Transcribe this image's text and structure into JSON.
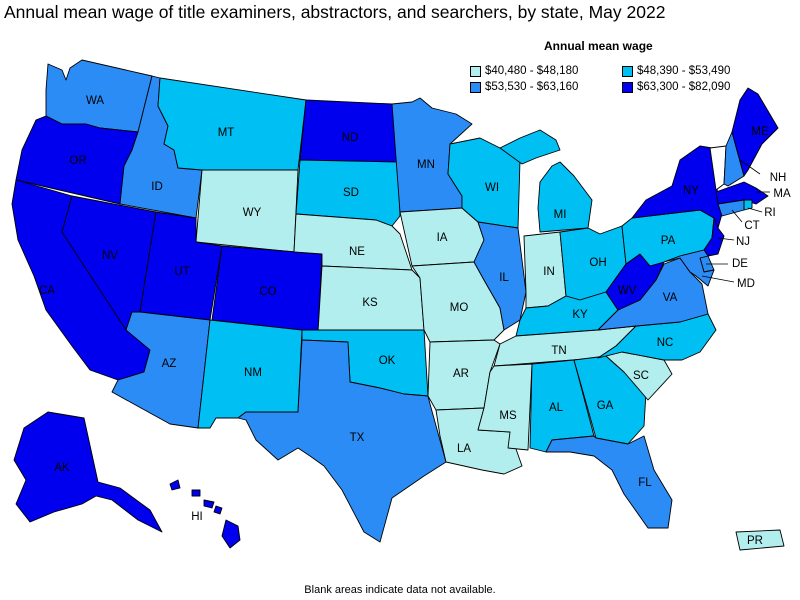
{
  "title": "Annual mean wage of title examiners, abstractors, and searchers, by state, May 2022",
  "legend": {
    "title": "Annual mean wage",
    "bins": [
      {
        "label": "$40,480 - $48,180",
        "color": "#b3eeee"
      },
      {
        "label": "$48,390 - $53,490",
        "color": "#00bff3"
      },
      {
        "label": "$53,530 - $63,160",
        "color": "#2b8cf6"
      },
      {
        "label": "$63,300 - $82,090",
        "color": "#0000ee"
      }
    ]
  },
  "footnote": "Blank areas indicate data not available.",
  "states": {
    "WA": {
      "label": "WA",
      "bin": 2
    },
    "OR": {
      "label": "OR",
      "bin": 3
    },
    "CA": {
      "label": "CA",
      "bin": 3
    },
    "NV": {
      "label": "NV",
      "bin": 3
    },
    "ID": {
      "label": "ID",
      "bin": 2
    },
    "MT": {
      "label": "MT",
      "bin": 1
    },
    "WY": {
      "label": "WY",
      "bin": 0
    },
    "UT": {
      "label": "UT",
      "bin": 3
    },
    "CO": {
      "label": "CO",
      "bin": 3
    },
    "AZ": {
      "label": "AZ",
      "bin": 2
    },
    "NM": {
      "label": "NM",
      "bin": 1
    },
    "ND": {
      "label": "ND",
      "bin": 3
    },
    "SD": {
      "label": "SD",
      "bin": 1
    },
    "NE": {
      "label": "NE",
      "bin": 0
    },
    "KS": {
      "label": "KS",
      "bin": 0
    },
    "OK": {
      "label": "OK",
      "bin": 1
    },
    "TX": {
      "label": "TX",
      "bin": 2
    },
    "MN": {
      "label": "MN",
      "bin": 2
    },
    "IA": {
      "label": "IA",
      "bin": 0
    },
    "MO": {
      "label": "MO",
      "bin": 0
    },
    "AR": {
      "label": "AR",
      "bin": 0
    },
    "LA": {
      "label": "LA",
      "bin": 0
    },
    "WI": {
      "label": "WI",
      "bin": 1
    },
    "IL": {
      "label": "IL",
      "bin": 2
    },
    "MI": {
      "label": "MI",
      "bin": 1
    },
    "IN": {
      "label": "IN",
      "bin": 0
    },
    "OH": {
      "label": "OH",
      "bin": 1
    },
    "KY": {
      "label": "KY",
      "bin": 1
    },
    "TN": {
      "label": "TN",
      "bin": 0
    },
    "MS": {
      "label": "MS",
      "bin": 0
    },
    "AL": {
      "label": "AL",
      "bin": 1
    },
    "GA": {
      "label": "GA",
      "bin": 1
    },
    "FL": {
      "label": "FL",
      "bin": 2
    },
    "SC": {
      "label": "SC",
      "bin": 0
    },
    "NC": {
      "label": "NC",
      "bin": 1
    },
    "VA": {
      "label": "VA",
      "bin": 2
    },
    "WV": {
      "label": "WV",
      "bin": 3
    },
    "PA": {
      "label": "PA",
      "bin": 1
    },
    "NY": {
      "label": "NY",
      "bin": 3
    },
    "VT": {
      "label": "",
      "bin": null
    },
    "NH": {
      "label": "NH",
      "bin": 2
    },
    "ME": {
      "label": "ME",
      "bin": 3
    },
    "MA": {
      "label": "MA",
      "bin": 3
    },
    "RI": {
      "label": "RI",
      "bin": 1
    },
    "CT": {
      "label": "CT",
      "bin": 2
    },
    "NJ": {
      "label": "NJ",
      "bin": 3
    },
    "DE": {
      "label": "DE",
      "bin": 2
    },
    "MD": {
      "label": "MD",
      "bin": 2
    },
    "AK": {
      "label": "AK",
      "bin": 3
    },
    "HI": {
      "label": "HI",
      "bin": 3
    },
    "PR": {
      "label": "PR",
      "bin": 0
    }
  }
}
